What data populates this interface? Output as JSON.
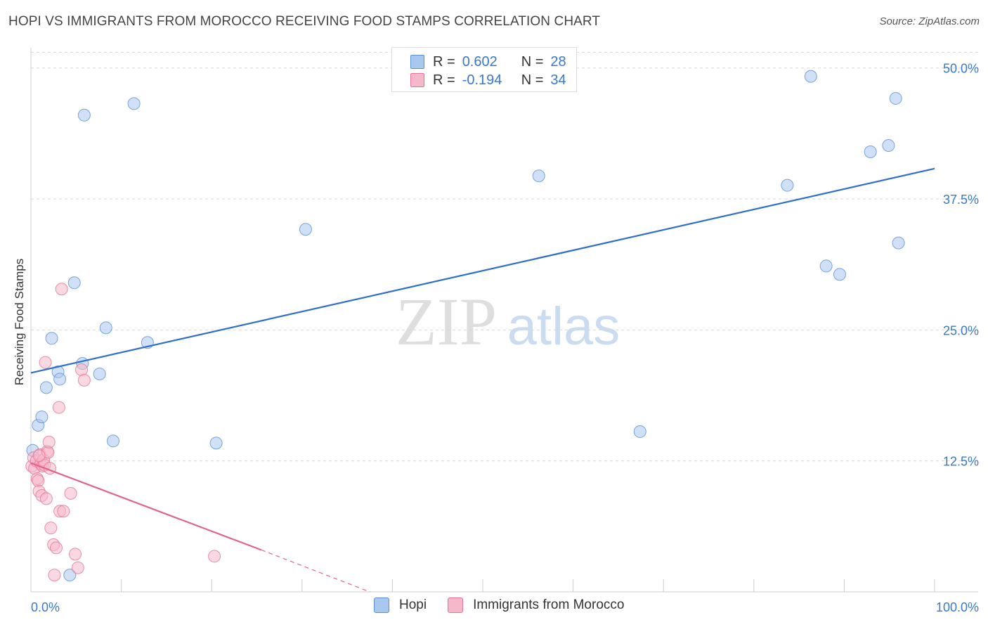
{
  "header": {
    "title": "HOPI VS IMMIGRANTS FROM MOROCCO RECEIVING FOOD STAMPS CORRELATION CHART",
    "source": "Source: ZipAtlas.com"
  },
  "legend_top": {
    "rows": [
      {
        "r_label": "R =",
        "r_value": "0.602",
        "n_label": "N =",
        "n_value": "28",
        "color": "#a9c8f0"
      },
      {
        "r_label": "R =",
        "r_value": "-0.194",
        "n_label": "N =",
        "n_value": "34",
        "color": "#f5b8cb"
      }
    ]
  },
  "watermark": {
    "zip": "ZIP",
    "atlas": "atlas"
  },
  "colors": {
    "hopi_fill": "#a9c8f0",
    "hopi_stroke": "#5b8fd6",
    "hopi_line": "#2f6fcb",
    "morocco_fill": "#f5b8cb",
    "morocco_stroke": "#e57399",
    "morocco_line": "#e0648f",
    "tick_label": "#3a78c9",
    "grid": "#d8d8d8"
  },
  "chart_data": {
    "type": "scatter",
    "title": "HOPI VS IMMIGRANTS FROM MOROCCO RECEIVING FOOD STAMPS CORRELATION CHART",
    "xlabel": "",
    "ylabel": "Receiving Food Stamps",
    "xlim": [
      0,
      100
    ],
    "ylim": [
      0,
      53
    ],
    "x_tick_labels": [
      "0.0%",
      "100.0%"
    ],
    "y_ticks": [
      12.5,
      25.0,
      37.5,
      50.0
    ],
    "y_tick_labels": [
      "12.5%",
      "25.0%",
      "37.5%",
      "50.0%"
    ],
    "grid": true,
    "legend_placement": "bottom",
    "series": [
      {
        "name": "Hopi",
        "r": 0.602,
        "n": 28,
        "points": [
          [
            0.2,
            13.5
          ],
          [
            0.8,
            15.9
          ],
          [
            1.2,
            16.7
          ],
          [
            1.7,
            19.5
          ],
          [
            2.3,
            24.2
          ],
          [
            3.0,
            21.0
          ],
          [
            3.2,
            20.3
          ],
          [
            4.8,
            29.5
          ],
          [
            5.7,
            21.8
          ],
          [
            5.9,
            45.5
          ],
          [
            7.6,
            20.8
          ],
          [
            8.3,
            25.2
          ],
          [
            9.1,
            14.4
          ],
          [
            11.4,
            46.6
          ],
          [
            12.9,
            23.8
          ],
          [
            20.5,
            14.2
          ],
          [
            30.4,
            34.6
          ],
          [
            56.2,
            39.7
          ],
          [
            67.4,
            15.3
          ],
          [
            83.7,
            38.8
          ],
          [
            86.3,
            49.2
          ],
          [
            88.0,
            31.1
          ],
          [
            89.5,
            30.3
          ],
          [
            92.9,
            42.0
          ],
          [
            94.9,
            42.6
          ],
          [
            95.7,
            47.1
          ],
          [
            96.0,
            33.3
          ],
          [
            4.3,
            1.6
          ]
        ],
        "trend": {
          "x": [
            0,
            100
          ],
          "y": [
            20.9,
            40.4
          ]
        }
      },
      {
        "name": "Immigrants from Morocco",
        "r": -0.194,
        "n": 34,
        "points": [
          [
            0.1,
            12.0
          ],
          [
            0.3,
            12.8
          ],
          [
            0.4,
            11.8
          ],
          [
            0.6,
            12.5
          ],
          [
            0.7,
            10.8
          ],
          [
            0.8,
            10.6
          ],
          [
            0.9,
            9.6
          ],
          [
            1.0,
            13.1
          ],
          [
            1.1,
            12.2
          ],
          [
            1.2,
            9.2
          ],
          [
            1.3,
            12.0
          ],
          [
            1.4,
            12.6
          ],
          [
            1.5,
            12.1
          ],
          [
            1.6,
            21.9
          ],
          [
            1.7,
            8.9
          ],
          [
            1.8,
            13.4
          ],
          [
            1.9,
            13.3
          ],
          [
            2.0,
            14.3
          ],
          [
            2.1,
            11.8
          ],
          [
            2.2,
            6.1
          ],
          [
            2.5,
            4.5
          ],
          [
            2.6,
            1.6
          ],
          [
            2.8,
            4.2
          ],
          [
            3.1,
            17.6
          ],
          [
            3.2,
            7.7
          ],
          [
            3.4,
            28.9
          ],
          [
            3.6,
            7.7
          ],
          [
            4.4,
            9.4
          ],
          [
            4.9,
            3.6
          ],
          [
            5.2,
            2.3
          ],
          [
            5.6,
            21.2
          ],
          [
            5.9,
            20.2
          ],
          [
            20.3,
            3.4
          ],
          [
            0.9,
            13.0
          ]
        ],
        "trend": {
          "x": [
            0,
            25.5
          ],
          "y": [
            12.3,
            4.0
          ]
        },
        "trend_dashed": {
          "x": [
            25.5,
            37.5
          ],
          "y": [
            4.0,
            0.0
          ]
        }
      }
    ]
  },
  "bottom_legend": {
    "items": [
      {
        "label": "Hopi",
        "color": "#a9c8f0"
      },
      {
        "label": "Immigrants from Morocco",
        "color": "#f5b8cb"
      }
    ]
  }
}
